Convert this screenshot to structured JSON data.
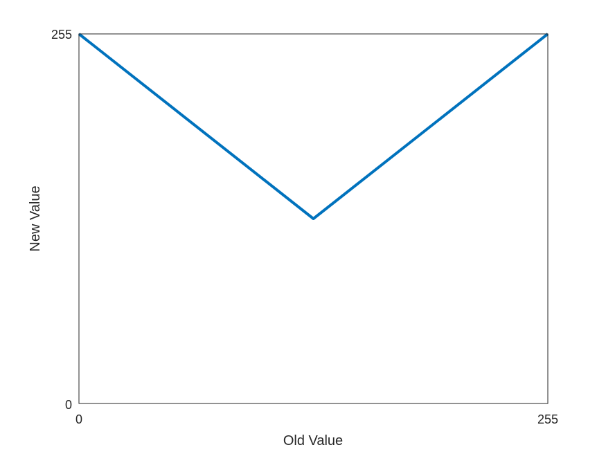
{
  "chart_data": {
    "type": "line",
    "title": "",
    "xlabel": "Old Value",
    "ylabel": "New Value",
    "xlim": [
      0,
      255
    ],
    "ylim": [
      0,
      255
    ],
    "xticks": [
      0,
      255
    ],
    "yticks": [
      0,
      255
    ],
    "xtick_labels": [
      "0",
      "255"
    ],
    "ytick_labels": [
      "0",
      "255"
    ],
    "grid": false,
    "series": [
      {
        "color": "#0072bd",
        "x": [
          0,
          127.5,
          255
        ],
        "y": [
          255,
          127.5,
          255
        ]
      }
    ]
  }
}
